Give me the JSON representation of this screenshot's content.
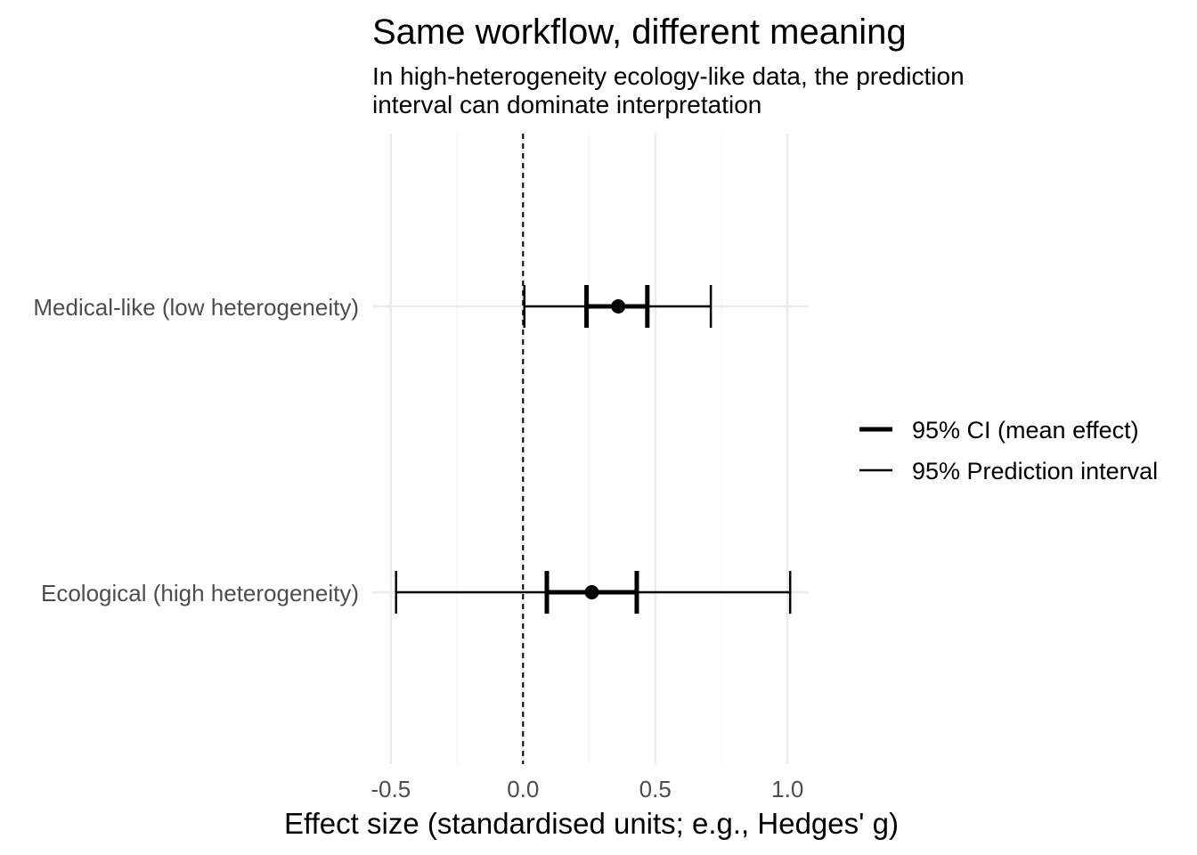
{
  "chart_data": {
    "type": "forest",
    "title": "Same workflow, different meaning",
    "subtitle_lines": [
      "In high-heterogeneity ecology-like data, the prediction",
      "interval can dominate interpretation"
    ],
    "xlabel": "Effect size (standardised units; e.g., Hedges' g)",
    "ylabel": "",
    "xlim": [
      -0.57,
      1.08
    ],
    "x_ticks": [
      -0.5,
      0.0,
      0.5,
      1.0
    ],
    "x_tick_labels": [
      "-0.5",
      "0.0",
      "0.5",
      "1.0"
    ],
    "reference_line": 0,
    "grid": true,
    "legend_position": "right",
    "legend": [
      "95% CI (mean effect)",
      "95% Prediction interval"
    ],
    "categories": [
      "Medical-like (low heterogeneity)",
      "Ecological (high heterogeneity)"
    ],
    "rows": [
      {
        "label": "Medical-like (low heterogeneity)",
        "estimate": 0.36,
        "ci": [
          0.24,
          0.47
        ],
        "pi": [
          0.005,
          0.71
        ]
      },
      {
        "label": "Ecological (high heterogeneity)",
        "estimate": 0.26,
        "ci": [
          0.09,
          0.43
        ],
        "pi": [
          -0.48,
          1.01
        ]
      }
    ],
    "colors": {
      "marks": "#000000",
      "grid": "#ebebeb",
      "tick_text": "#4d4d4d"
    }
  }
}
